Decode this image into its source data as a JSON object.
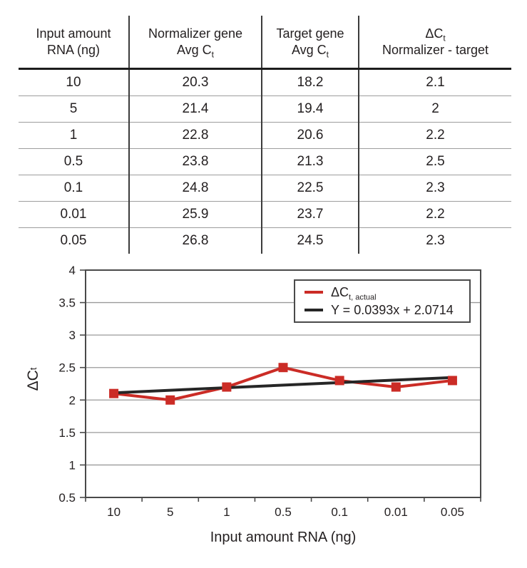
{
  "table": {
    "headers": [
      {
        "line1": "Input amount",
        "line2": "RNA (ng)"
      },
      {
        "line1": "Normalizer gene",
        "line2_main": "Avg C",
        "line2_sub": "t"
      },
      {
        "line1": "Target gene",
        "line2_main": "Avg C",
        "line2_sub": "t"
      },
      {
        "line1_main": "ΔC",
        "line1_sub": "t",
        "line2": "Normalizer - target"
      }
    ]
  },
  "chart_data": [
    {
      "type": "table",
      "columns": [
        "Input amount RNA (ng)",
        "Normalizer gene Avg Ct",
        "Target gene Avg Ct",
        "ΔCt Normalizer - target"
      ],
      "rows": [
        [
          10,
          20.3,
          18.2,
          2.1
        ],
        [
          5,
          21.4,
          19.4,
          2
        ],
        [
          1,
          22.8,
          20.6,
          2.2
        ],
        [
          0.5,
          23.8,
          21.3,
          2.5
        ],
        [
          0.1,
          24.8,
          22.5,
          2.3
        ],
        [
          0.01,
          25.9,
          23.7,
          2.2
        ],
        [
          0.05,
          26.8,
          24.5,
          2.3
        ]
      ]
    },
    {
      "type": "line",
      "title": "",
      "categories": [
        "10",
        "5",
        "1",
        "0.5",
        "0.1",
        "0.01",
        "0.05"
      ],
      "series": [
        {
          "name": "ΔCt, actual",
          "legend_main": "ΔC",
          "legend_sub": "t, actual",
          "color": "#cb2c26",
          "marker": "square",
          "values": [
            2.1,
            2.0,
            2.2,
            2.5,
            2.3,
            2.2,
            2.3
          ]
        },
        {
          "name": "Y = 0.0393x + 2.0714",
          "legend_main": "Y = 0.0393x + 2.0714",
          "legend_sub": "",
          "color": "#262626",
          "trendline": {
            "slope": 0.0393,
            "intercept": 2.0714
          }
        }
      ],
      "xlabel": "Input amount RNA (ng)",
      "ylabel": "ΔCt",
      "ylabel_main": "ΔC",
      "ylabel_sub": "t",
      "ylim": [
        0.5,
        4
      ],
      "ytick_step": 0.5,
      "ytick_labels": [
        "0.5",
        "1",
        "1.5",
        "2",
        "2.5",
        "3",
        "3.5",
        "4"
      ],
      "grid": true,
      "legend_position": "top-right",
      "colors": {
        "grid": "#9a9a9a",
        "axis": "#4a4a4a",
        "text": "#231f20"
      }
    }
  ]
}
